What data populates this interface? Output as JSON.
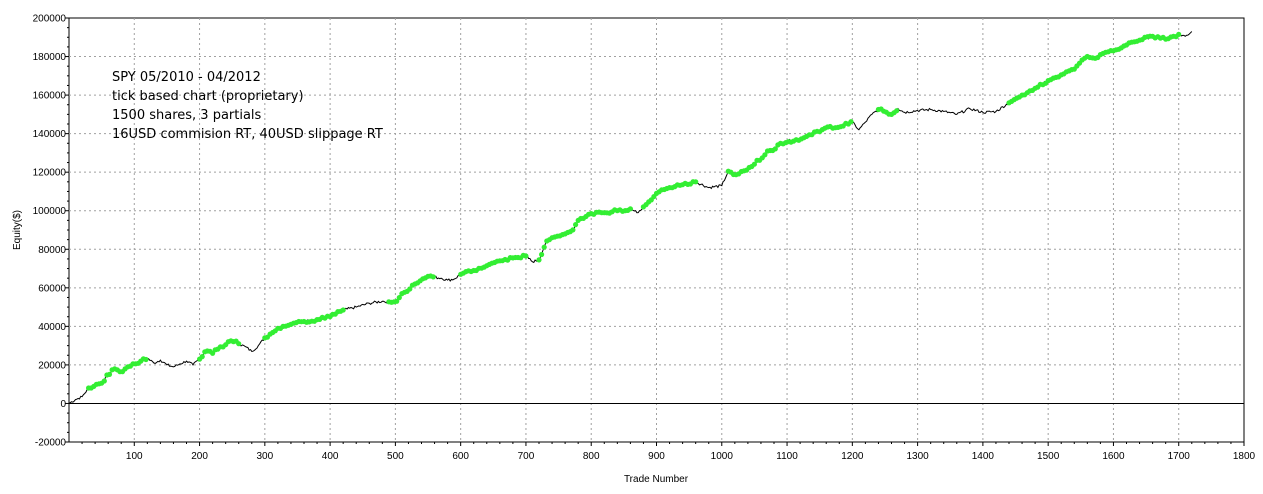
{
  "chart_data": {
    "type": "line",
    "title": "",
    "xlabel": "Trade Number",
    "ylabel": "Equity($)",
    "xlim": [
      0,
      1800
    ],
    "ylim": [
      -20000,
      200000
    ],
    "x_ticks": [
      100,
      200,
      300,
      400,
      500,
      600,
      700,
      800,
      900,
      1000,
      1100,
      1200,
      1300,
      1400,
      1500,
      1600,
      1700,
      1800
    ],
    "y_ticks": [
      -20000,
      0,
      20000,
      40000,
      60000,
      80000,
      100000,
      120000,
      140000,
      160000,
      180000,
      200000
    ],
    "x_tick_labels": [
      "100",
      "200",
      "300",
      "400",
      "500",
      "600",
      "700",
      "800",
      "900",
      "1000",
      "1100",
      "1200",
      "1300",
      "1400",
      "1500",
      "1600",
      "1700",
      "1800"
    ],
    "y_tick_labels": [
      "-20000",
      "0",
      "20000",
      "40000",
      "60000",
      "80000",
      "100000",
      "120000",
      "140000",
      "160000",
      "180000",
      "200000"
    ],
    "grid": true,
    "annotations": [
      "SPY 05/2010 - 04/2012",
      "tick based chart (proprietary)",
      "1500 shares, 3 partials",
      "16USD commision RT, 40USD slippage RT"
    ],
    "series": [
      {
        "line_color": "#000000",
        "marker_color": "#33ee33",
        "x": [
          0,
          10,
          20,
          30,
          40,
          50,
          60,
          70,
          80,
          90,
          100,
          110,
          120,
          130,
          140,
          150,
          160,
          170,
          180,
          190,
          200,
          210,
          220,
          230,
          240,
          250,
          260,
          270,
          280,
          290,
          300,
          320,
          340,
          360,
          380,
          400,
          420,
          440,
          460,
          480,
          500,
          510,
          520,
          530,
          540,
          550,
          560,
          570,
          580,
          590,
          600,
          620,
          640,
          660,
          680,
          700,
          710,
          720,
          730,
          740,
          750,
          760,
          770,
          780,
          790,
          800,
          820,
          840,
          860,
          870,
          880,
          890,
          900,
          910,
          920,
          940,
          960,
          980,
          1000,
          1010,
          1020,
          1040,
          1060,
          1070,
          1080,
          1090,
          1100,
          1120,
          1140,
          1160,
          1180,
          1200,
          1210,
          1220,
          1230,
          1240,
          1250,
          1260,
          1270,
          1280,
          1300,
          1320,
          1340,
          1360,
          1380,
          1400,
          1420,
          1440,
          1450,
          1460,
          1480,
          1500,
          1520,
          1540,
          1550,
          1560,
          1570,
          1580,
          1600,
          1620,
          1640,
          1660,
          1680,
          1700,
          1710,
          1720
        ],
        "y": [
          0,
          2000,
          3500,
          8000,
          9500,
          10500,
          15000,
          18000,
          16500,
          19000,
          20500,
          22000,
          23500,
          21000,
          22500,
          20000,
          19000,
          20500,
          22000,
          20000,
          23000,
          28000,
          26000,
          29000,
          30500,
          33000,
          31000,
          29500,
          27000,
          30000,
          34000,
          39000,
          41000,
          42500,
          43500,
          45000,
          48500,
          50000,
          52000,
          53000,
          52500,
          57000,
          59000,
          62000,
          64500,
          66000,
          65500,
          65000,
          64000,
          64500,
          67000,
          69000,
          71500,
          74000,
          75500,
          76500,
          73500,
          74500,
          83000,
          86000,
          87000,
          88000,
          89500,
          95000,
          97000,
          98500,
          99000,
          100000,
          101000,
          99000,
          102000,
          105500,
          109000,
          111000,
          112000,
          113500,
          115000,
          112000,
          113000,
          120500,
          118500,
          122000,
          127000,
          131000,
          132000,
          135000,
          136000,
          137000,
          140000,
          143000,
          143500,
          146000,
          142000,
          146000,
          150000,
          152500,
          151500,
          150000,
          153000,
          151000,
          152000,
          152500,
          151500,
          150000,
          153000,
          151000,
          151500,
          156000,
          158000,
          160000,
          163500,
          167500,
          170500,
          173500,
          177000,
          180000,
          178500,
          181000,
          183000,
          186000,
          188500,
          190500,
          189000,
          191500,
          190500,
          193000
        ],
        "marked_segments": [
          [
            30,
            120
          ],
          [
            200,
            260
          ],
          [
            300,
            420
          ],
          [
            490,
            560
          ],
          [
            600,
            700
          ],
          [
            720,
            860
          ],
          [
            880,
            960
          ],
          [
            1010,
            1200
          ],
          [
            1240,
            1270
          ],
          [
            1440,
            1700
          ]
        ]
      }
    ]
  }
}
